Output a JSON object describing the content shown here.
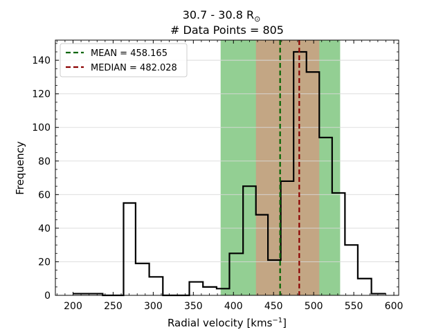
{
  "chart_data": {
    "type": "histogram",
    "title_line1": "30.7 - 30.8 R",
    "title_symbol": "⊙",
    "title_line2": "# Data Points = 805",
    "xlabel": "Radial velocity [kms",
    "xlabel_sup": "−1",
    "xlabel_end": "]",
    "ylabel": "Frequency",
    "xlim": [
      178,
      606
    ],
    "ylim": [
      0,
      152
    ],
    "xticks": [
      200,
      250,
      300,
      350,
      400,
      450,
      500,
      550,
      600
    ],
    "yticks": [
      0,
      20,
      40,
      60,
      80,
      100,
      120,
      140
    ],
    "grid": "horizontal",
    "bins": [
      {
        "x0": 200,
        "x1": 218.5,
        "count": 1
      },
      {
        "x0": 218.5,
        "x1": 237,
        "count": 1
      },
      {
        "x0": 237,
        "x1": 255.5,
        "count": 0
      },
      {
        "x0": 255.5,
        "x1": 263,
        "count": 0
      },
      {
        "x0": 263,
        "x1": 278,
        "count": 55
      },
      {
        "x0": 278,
        "x1": 295,
        "count": 19
      },
      {
        "x0": 295,
        "x1": 312,
        "count": 11
      },
      {
        "x0": 312,
        "x1": 329,
        "count": 0
      },
      {
        "x0": 329,
        "x1": 345,
        "count": 0
      },
      {
        "x0": 345,
        "x1": 362,
        "count": 8
      },
      {
        "x0": 362,
        "x1": 379,
        "count": 5
      },
      {
        "x0": 379,
        "x1": 395,
        "count": 4
      },
      {
        "x0": 395,
        "x1": 412,
        "count": 25
      },
      {
        "x0": 412,
        "x1": 428,
        "count": 65
      },
      {
        "x0": 428,
        "x1": 443,
        "count": 48
      },
      {
        "x0": 443,
        "x1": 459,
        "count": 21
      },
      {
        "x0": 459,
        "x1": 475,
        "count": 68
      },
      {
        "x0": 475,
        "x1": 491,
        "count": 145
      },
      {
        "x0": 491,
        "x1": 507,
        "count": 133
      },
      {
        "x0": 507,
        "x1": 523,
        "count": 94
      },
      {
        "x0": 523,
        "x1": 539,
        "count": 61
      },
      {
        "x0": 539,
        "x1": 555,
        "count": 30
      },
      {
        "x0": 555,
        "x1": 572,
        "count": 10
      },
      {
        "x0": 572,
        "x1": 590,
        "count": 1
      }
    ],
    "bands": [
      {
        "name": "outer",
        "x0": 384,
        "x1": 533,
        "color": "#93cf93"
      },
      {
        "name": "inner",
        "x0": 428,
        "x1": 507,
        "color": "#c3a684"
      }
    ],
    "mean": {
      "label": "MEAN = 458.165",
      "value": 458.165,
      "color": "#006400"
    },
    "median": {
      "label": "MEDIAN = 482.028",
      "value": 482.028,
      "color": "#8b0000"
    },
    "legend_position": "upper-left"
  }
}
